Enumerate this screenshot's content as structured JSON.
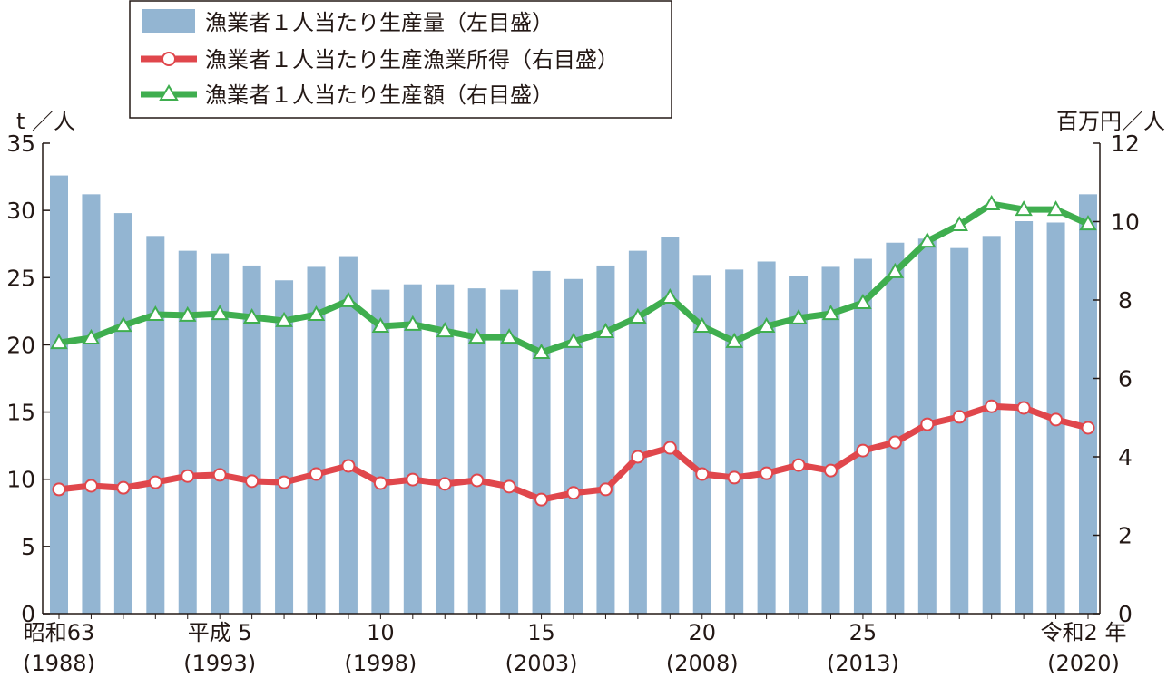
{
  "chart_data": {
    "type": "bar+line",
    "title": "",
    "left_axis": {
      "unit_label": "t ／人",
      "range": [
        0,
        35
      ],
      "ticks": [
        0,
        5,
        10,
        15,
        20,
        25,
        30,
        35
      ]
    },
    "right_axis": {
      "unit_label": "百万円／人",
      "range": [
        0,
        12
      ],
      "ticks": [
        0,
        2,
        4,
        6,
        8,
        10,
        12
      ]
    },
    "x": [
      1988,
      1989,
      1990,
      1991,
      1992,
      1993,
      1994,
      1995,
      1996,
      1997,
      1998,
      1999,
      2000,
      2001,
      2002,
      2003,
      2004,
      2005,
      2006,
      2007,
      2008,
      2009,
      2010,
      2011,
      2012,
      2013,
      2014,
      2015,
      2016,
      2017,
      2018,
      2019,
      2020
    ],
    "x_tick_labels": [
      {
        "index": 0,
        "line1": "昭和63",
        "line2": "(1988)"
      },
      {
        "index": 5,
        "line1": "平成 5",
        "line2": "(1993)"
      },
      {
        "index": 10,
        "line1": "10",
        "line2": "(1998)"
      },
      {
        "index": 15,
        "line1": "15",
        "line2": "(2003)"
      },
      {
        "index": 20,
        "line1": "20",
        "line2": "(2008)"
      },
      {
        "index": 25,
        "line1": "25",
        "line2": "(2013)"
      },
      {
        "index": 32,
        "line1": "令和2 年",
        "line2": "(2020)"
      }
    ],
    "series": [
      {
        "name": "漁業者１人当たり生産量（左目盛）",
        "type": "bar",
        "axis": "left",
        "color": "#93b5d2",
        "values": [
          32.6,
          31.2,
          29.8,
          28.1,
          27.0,
          26.8,
          25.9,
          24.8,
          25.8,
          26.6,
          24.1,
          24.5,
          24.5,
          24.2,
          24.1,
          25.5,
          24.9,
          25.9,
          27.0,
          28.0,
          25.2,
          25.6,
          26.2,
          25.1,
          25.8,
          26.4,
          27.6,
          27.9,
          27.2,
          28.1,
          29.2,
          29.1,
          31.2
        ]
      },
      {
        "name": "漁業者１人当たり生産漁業所得（右目盛）",
        "type": "line",
        "marker": "circle",
        "axis": "right",
        "color": "#e0474c",
        "values": [
          3.17,
          3.26,
          3.21,
          3.35,
          3.51,
          3.54,
          3.38,
          3.35,
          3.56,
          3.77,
          3.33,
          3.42,
          3.31,
          3.4,
          3.24,
          2.91,
          3.08,
          3.17,
          4.0,
          4.23,
          3.56,
          3.47,
          3.58,
          3.79,
          3.65,
          4.16,
          4.37,
          4.83,
          5.02,
          5.29,
          5.25,
          4.95,
          4.74
        ]
      },
      {
        "name": "漁業者１人当たり生産額（右目盛）",
        "type": "line",
        "marker": "triangle",
        "axis": "right",
        "color": "#3fae4f",
        "values": [
          6.91,
          7.03,
          7.35,
          7.63,
          7.61,
          7.65,
          7.56,
          7.47,
          7.63,
          7.98,
          7.33,
          7.38,
          7.21,
          7.05,
          7.05,
          6.66,
          6.94,
          7.19,
          7.56,
          8.07,
          7.33,
          6.94,
          7.33,
          7.54,
          7.65,
          7.93,
          8.72,
          9.5,
          9.92,
          10.45,
          10.31,
          10.31,
          9.94
        ]
      }
    ],
    "legend_position": "top-left",
    "grid": false
  }
}
